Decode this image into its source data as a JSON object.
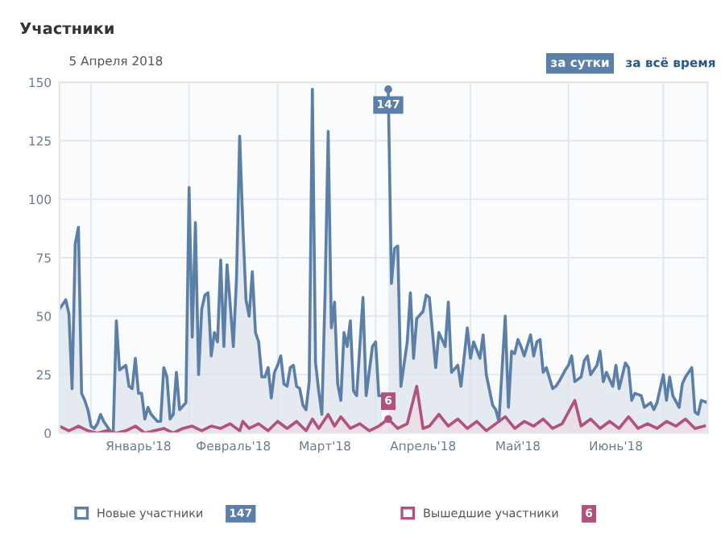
{
  "chart_data": {
    "type": "area",
    "title": "Участники",
    "subtitle": "5 Апреля 2018",
    "xlim": [
      "2017-12-22",
      "2018-07-15"
    ],
    "xticks": [
      {
        "value": "2018-01-01",
        "label": null
      },
      {
        "value": "2018-01-16",
        "label": "Январь'18"
      },
      {
        "value": "2018-02-01",
        "label": null
      },
      {
        "value": "2018-02-15",
        "label": "Февраль'18"
      },
      {
        "value": "2018-03-01",
        "label": null
      },
      {
        "value": "2018-03-16",
        "label": "Март'18"
      },
      {
        "value": "2018-04-01",
        "label": null
      },
      {
        "value": "2018-04-16",
        "label": "Апрель'18"
      },
      {
        "value": "2018-05-01",
        "label": null
      },
      {
        "value": "2018-05-16",
        "label": "Май'18"
      },
      {
        "value": "2018-06-01",
        "label": null
      },
      {
        "value": "2018-06-16",
        "label": "Июнь'18"
      },
      {
        "value": "2018-07-01",
        "label": null
      }
    ],
    "ylim": [
      0,
      150
    ],
    "yticks": [
      0,
      25,
      50,
      75,
      100,
      125,
      150
    ],
    "grid": true,
    "legend": "bottom",
    "marker": "none",
    "line_style": "solid",
    "series": [
      {
        "name": "Новые участники",
        "color": "#5b7fa6",
        "x": [
          "2017-12-22",
          "2017-12-24",
          "2017-12-25",
          "2017-12-26",
          "2017-12-27",
          "2017-12-28",
          "2017-12-29",
          "2017-12-30",
          "2017-12-31",
          "2018-01-01",
          "2018-01-02",
          "2018-01-03",
          "2018-01-04",
          "2018-01-05",
          "2018-01-06",
          "2018-01-07",
          "2018-01-08",
          "2018-01-09",
          "2018-01-10",
          "2018-01-11",
          "2018-01-12",
          "2018-01-13",
          "2018-01-14",
          "2018-01-15",
          "2018-01-16",
          "2018-01-17",
          "2018-01-18",
          "2018-01-19",
          "2018-01-20",
          "2018-01-22",
          "2018-01-23",
          "2018-01-24",
          "2018-01-25",
          "2018-01-26",
          "2018-01-27",
          "2018-01-28",
          "2018-01-29",
          "2018-01-31",
          "2018-02-01",
          "2018-02-02",
          "2018-02-03",
          "2018-02-04",
          "2018-02-05",
          "2018-02-06",
          "2018-02-07",
          "2018-02-08",
          "2018-02-09",
          "2018-02-10",
          "2018-02-11",
          "2018-02-12",
          "2018-02-13",
          "2018-02-14",
          "2018-02-15",
          "2018-02-16",
          "2018-02-17",
          "2018-02-18",
          "2018-02-19",
          "2018-02-20",
          "2018-02-21",
          "2018-02-22",
          "2018-02-23",
          "2018-02-24",
          "2018-02-25",
          "2018-02-26",
          "2018-02-27",
          "2018-02-28",
          "2018-03-01",
          "2018-03-02",
          "2018-03-03",
          "2018-03-04",
          "2018-03-05",
          "2018-03-06",
          "2018-03-07",
          "2018-03-08",
          "2018-03-09",
          "2018-03-10",
          "2018-03-11",
          "2018-03-12",
          "2018-03-13",
          "2018-03-14",
          "2018-03-15",
          "2018-03-16",
          "2018-03-17",
          "2018-03-18",
          "2018-03-19",
          "2018-03-20",
          "2018-03-21",
          "2018-03-22",
          "2018-03-23",
          "2018-03-24",
          "2018-03-25",
          "2018-03-26",
          "2018-03-28",
          "2018-03-29",
          "2018-03-31",
          "2018-04-01",
          "2018-04-02",
          "2018-04-03",
          "2018-04-04",
          "2018-04-05",
          "2018-04-06",
          "2018-04-07",
          "2018-04-08",
          "2018-04-09",
          "2018-04-11",
          "2018-04-12",
          "2018-04-13",
          "2018-04-14",
          "2018-04-16",
          "2018-04-17",
          "2018-04-18",
          "2018-04-20",
          "2018-04-21",
          "2018-04-23",
          "2018-04-24",
          "2018-04-25",
          "2018-04-27",
          "2018-04-28",
          "2018-04-30",
          "2018-05-01",
          "2018-05-02",
          "2018-05-04",
          "2018-05-05",
          "2018-05-06",
          "2018-05-08",
          "2018-05-09",
          "2018-05-10",
          "2018-05-12",
          "2018-05-13",
          "2018-05-14",
          "2018-05-15",
          "2018-05-16",
          "2018-05-17",
          "2018-05-18",
          "2018-05-20",
          "2018-05-21",
          "2018-05-22",
          "2018-05-23",
          "2018-05-24",
          "2018-05-25",
          "2018-05-27",
          "2018-05-28",
          "2018-05-29",
          "2018-05-31",
          "2018-06-01",
          "2018-06-02",
          "2018-06-03",
          "2018-06-05",
          "2018-06-06",
          "2018-06-07",
          "2018-06-08",
          "2018-06-10",
          "2018-06-11",
          "2018-06-12",
          "2018-06-13",
          "2018-06-15",
          "2018-06-16",
          "2018-06-17",
          "2018-06-19",
          "2018-06-20",
          "2018-06-21",
          "2018-06-22",
          "2018-06-24",
          "2018-06-25",
          "2018-06-27",
          "2018-06-28",
          "2018-06-29",
          "2018-07-01",
          "2018-07-02",
          "2018-07-03",
          "2018-07-04",
          "2018-07-06",
          "2018-07-07",
          "2018-07-08",
          "2018-07-10",
          "2018-07-11",
          "2018-07-12",
          "2018-07-13",
          "2018-07-15"
        ],
        "values": [
          53,
          57,
          51,
          19,
          81,
          88,
          17,
          14,
          10,
          3,
          2,
          4,
          8,
          5,
          3,
          1,
          0,
          48,
          27,
          28,
          29,
          20,
          19,
          32,
          17,
          17,
          6,
          11,
          8,
          5,
          5,
          28,
          24,
          6,
          8,
          26,
          10,
          13,
          105,
          41,
          90,
          25,
          53,
          59,
          60,
          33,
          43,
          39,
          74,
          37,
          72,
          55,
          37,
          66,
          127,
          89,
          57,
          50,
          69,
          43,
          39,
          24,
          24,
          28,
          15,
          26,
          29,
          33,
          21,
          20,
          28,
          29,
          20,
          19,
          12,
          10,
          22,
          147,
          30,
          18,
          8,
          59,
          129,
          45,
          56,
          21,
          14,
          43,
          37,
          48,
          18,
          16,
          58,
          16,
          37,
          39,
          16,
          16,
          null,
          147,
          64,
          79,
          80,
          20,
          39,
          60,
          32,
          49,
          52,
          59,
          58,
          28,
          43,
          37,
          56,
          26,
          29,
          20,
          45,
          32,
          39,
          32,
          42,
          25,
          12,
          10,
          5,
          50,
          11,
          35,
          34,
          40,
          37,
          33,
          42,
          33,
          39,
          40,
          26,
          28,
          19,
          20,
          22,
          27,
          29,
          33,
          22,
          24,
          31,
          33,
          25,
          29,
          35,
          22,
          26,
          20,
          29,
          19,
          30,
          28,
          14,
          17,
          16,
          11,
          13,
          10,
          13,
          25,
          14,
          24,
          16,
          11,
          21,
          24,
          28,
          9,
          8,
          14,
          13
        ]
      },
      {
        "name": "Вышедшие участники",
        "color": "#b0517e",
        "x": [
          "2017-12-22",
          "2017-12-25",
          "2017-12-28",
          "2017-12-31",
          "2018-01-03",
          "2018-01-06",
          "2018-01-09",
          "2018-01-12",
          "2018-01-15",
          "2018-01-18",
          "2018-01-21",
          "2018-01-24",
          "2018-01-27",
          "2018-01-30",
          "2018-02-02",
          "2018-02-05",
          "2018-02-08",
          "2018-02-11",
          "2018-02-14",
          "2018-02-17",
          "2018-02-18",
          "2018-02-20",
          "2018-02-23",
          "2018-02-26",
          "2018-03-01",
          "2018-03-04",
          "2018-03-07",
          "2018-03-10",
          "2018-03-12",
          "2018-03-14",
          "2018-03-17",
          "2018-03-19",
          "2018-03-21",
          "2018-03-24",
          "2018-03-27",
          "2018-03-30",
          "2018-04-02",
          "2018-04-05",
          "2018-04-08",
          "2018-04-11",
          "2018-04-14",
          "2018-04-16",
          "2018-04-18",
          "2018-04-21",
          "2018-04-24",
          "2018-04-27",
          "2018-04-30",
          "2018-05-03",
          "2018-05-06",
          "2018-05-09",
          "2018-05-12",
          "2018-05-15",
          "2018-05-18",
          "2018-05-21",
          "2018-05-24",
          "2018-05-27",
          "2018-05-30",
          "2018-06-03",
          "2018-06-05",
          "2018-06-08",
          "2018-06-11",
          "2018-06-14",
          "2018-06-17",
          "2018-06-20",
          "2018-06-23",
          "2018-06-26",
          "2018-06-29",
          "2018-07-02",
          "2018-07-05",
          "2018-07-08",
          "2018-07-11",
          "2018-07-14"
        ],
        "values": [
          3,
          1,
          3,
          1,
          0,
          1,
          0,
          1,
          3,
          0,
          1,
          2,
          0,
          2,
          3,
          1,
          3,
          2,
          4,
          1,
          5,
          2,
          4,
          1,
          5,
          2,
          5,
          1,
          6,
          2,
          8,
          3,
          7,
          2,
          4,
          1,
          3,
          6,
          2,
          4,
          20,
          2,
          3,
          8,
          3,
          6,
          2,
          5,
          1,
          4,
          7,
          2,
          5,
          3,
          6,
          2,
          4,
          14,
          3,
          6,
          2,
          5,
          2,
          7,
          2,
          4,
          2,
          5,
          3,
          6,
          2,
          3
        ]
      }
    ],
    "annotations": [
      "за сутки",
      "за всё время",
      "147",
      "6",
      {
        "text": "147",
        "x": "2018-04-05",
        "y": 147
      },
      {
        "text": "6",
        "x": "2018-04-05",
        "y": 6
      }
    ]
  }
}
